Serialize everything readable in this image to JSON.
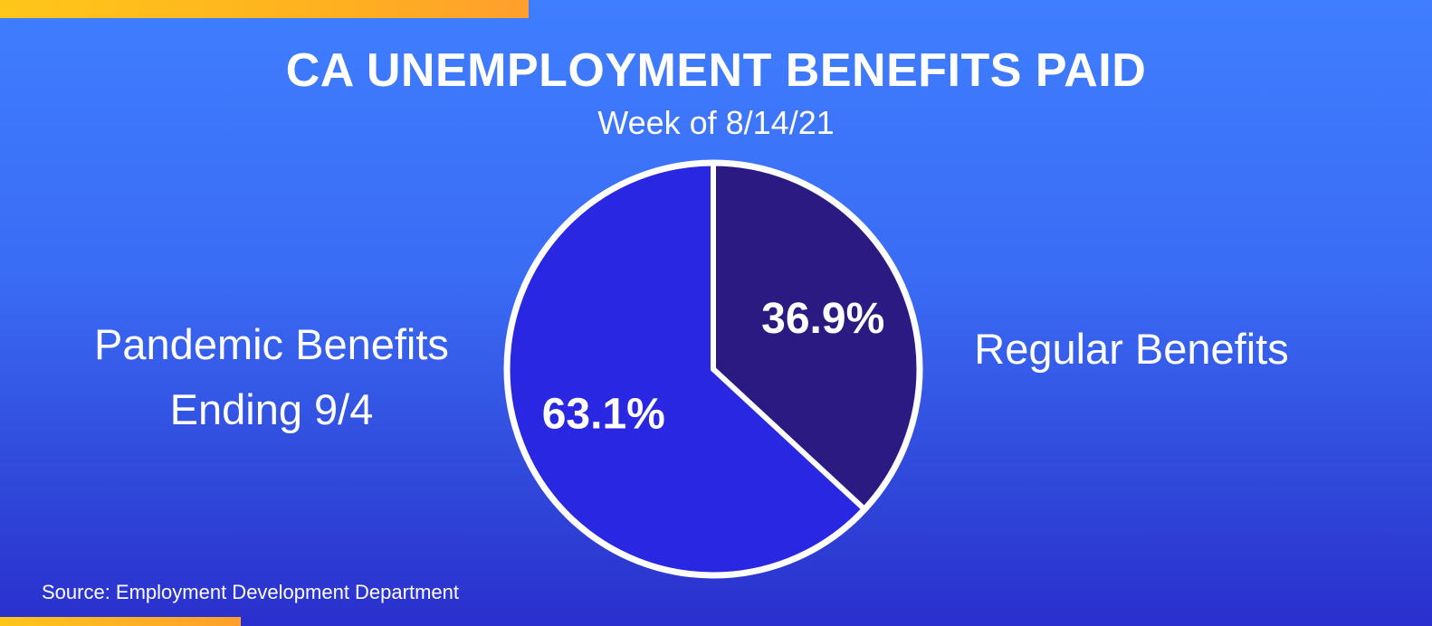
{
  "title": "CA UNEMPLOYMENT BENEFITS PAID",
  "subtitle": "Week of 8/14/21",
  "source": "Source: Employment Development Department",
  "colors": {
    "regular": "#2a1a82",
    "pandemic": "#2a27e2",
    "stroke": "#ffffff",
    "accent": "#ffb21f"
  },
  "chart_data": {
    "type": "pie",
    "title": "CA UNEMPLOYMENT BENEFITS PAID",
    "subtitle": "Week of 8/14/21",
    "slices": [
      {
        "label": "Regular Benefits",
        "value": 36.9,
        "display": "36.9%"
      },
      {
        "label": "Pandemic Benefits Ending 9/4",
        "value": 63.1,
        "display": "63.1%"
      }
    ],
    "categories": [
      "Regular Benefits",
      "Pandemic Benefits Ending 9/4"
    ],
    "values": [
      36.9,
      63.1
    ]
  },
  "labels": {
    "left_line1": "Pandemic Benefits",
    "left_line2": "Ending 9/4",
    "right": "Regular Benefits"
  }
}
